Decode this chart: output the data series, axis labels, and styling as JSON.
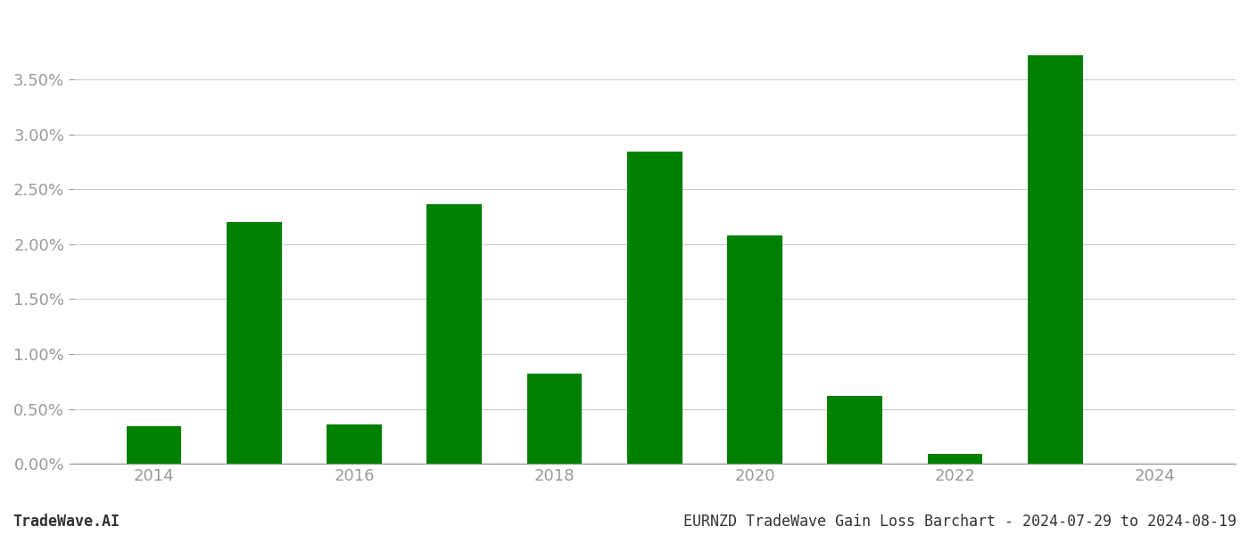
{
  "years": [
    2014,
    2015,
    2016,
    2017,
    2018,
    2019,
    2020,
    2021,
    2022,
    2023,
    2024
  ],
  "values": [
    0.0034,
    0.022,
    0.0036,
    0.0236,
    0.0082,
    0.0284,
    0.0208,
    0.0062,
    0.0009,
    0.0372,
    0.0
  ],
  "bar_color": "#008000",
  "background_color": "#ffffff",
  "grid_color": "#cccccc",
  "tick_color": "#999999",
  "title_text": "EURNZD TradeWave Gain Loss Barchart - 2024-07-29 to 2024-08-19",
  "watermark_text": "TradeWave.AI",
  "ylim": [
    0,
    0.041
  ],
  "yticks": [
    0.0,
    0.005,
    0.01,
    0.015,
    0.02,
    0.025,
    0.03,
    0.035
  ],
  "ytick_labels": [
    "0.00%",
    "0.50%",
    "1.00%",
    "1.50%",
    "2.00%",
    "2.50%",
    "3.00%",
    "3.50%"
  ],
  "title_fontsize": 12,
  "watermark_fontsize": 12,
  "tick_fontsize": 13,
  "bar_width": 0.55
}
